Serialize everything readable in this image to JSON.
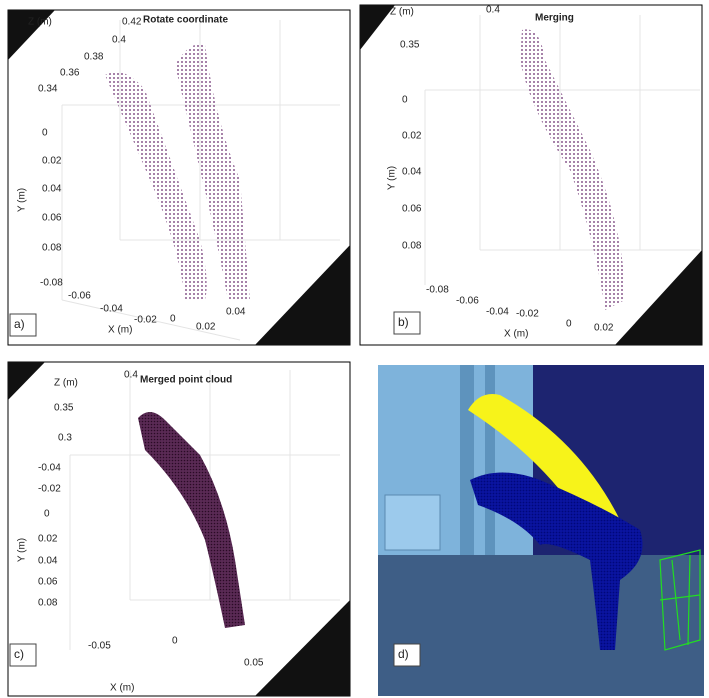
{
  "panels": [
    {
      "label": "a)",
      "title": "Rotate coordinate",
      "z_axis": {
        "label": "Z (m)",
        "ticks": [
          "0.42",
          "0.4",
          "0.38",
          "0.36",
          "0.34"
        ]
      },
      "y_axis": {
        "label": "Y (m)",
        "ticks": [
          "0",
          "0.02",
          "0.04",
          "0.06",
          "0.08"
        ]
      },
      "x_axis": {
        "label": "X (m)",
        "ticks": [
          "-0.08",
          "-0.06",
          "-0.04",
          "-0.02",
          "0",
          "0.02",
          "0.04"
        ]
      }
    },
    {
      "label": "b)",
      "title": "Merging",
      "z_axis": {
        "label": "Z (m)",
        "ticks": [
          "0.4",
          "0.35"
        ]
      },
      "y_axis": {
        "label": "Y (m)",
        "ticks": [
          "0",
          "0.02",
          "0.04",
          "0.06",
          "0.08"
        ]
      },
      "x_axis": {
        "label": "X (m)",
        "ticks": [
          "-0.08",
          "-0.06",
          "-0.04",
          "-0.02",
          "0",
          "0.02"
        ]
      }
    },
    {
      "label": "c)",
      "title": "Merged point cloud",
      "z_axis": {
        "label": "Z (m)",
        "ticks": [
          "0.4",
          "0.35",
          "0.3"
        ]
      },
      "y_axis": {
        "label": "Y (m)",
        "ticks": [
          "-0.04",
          "-0.02",
          "0",
          "0.02",
          "0.04",
          "0.06",
          "0.08"
        ]
      },
      "x_axis": {
        "label": "X (m)",
        "ticks": [
          "-0.05",
          "0",
          "0.05"
        ]
      }
    },
    {
      "label": "d)"
    }
  ]
}
